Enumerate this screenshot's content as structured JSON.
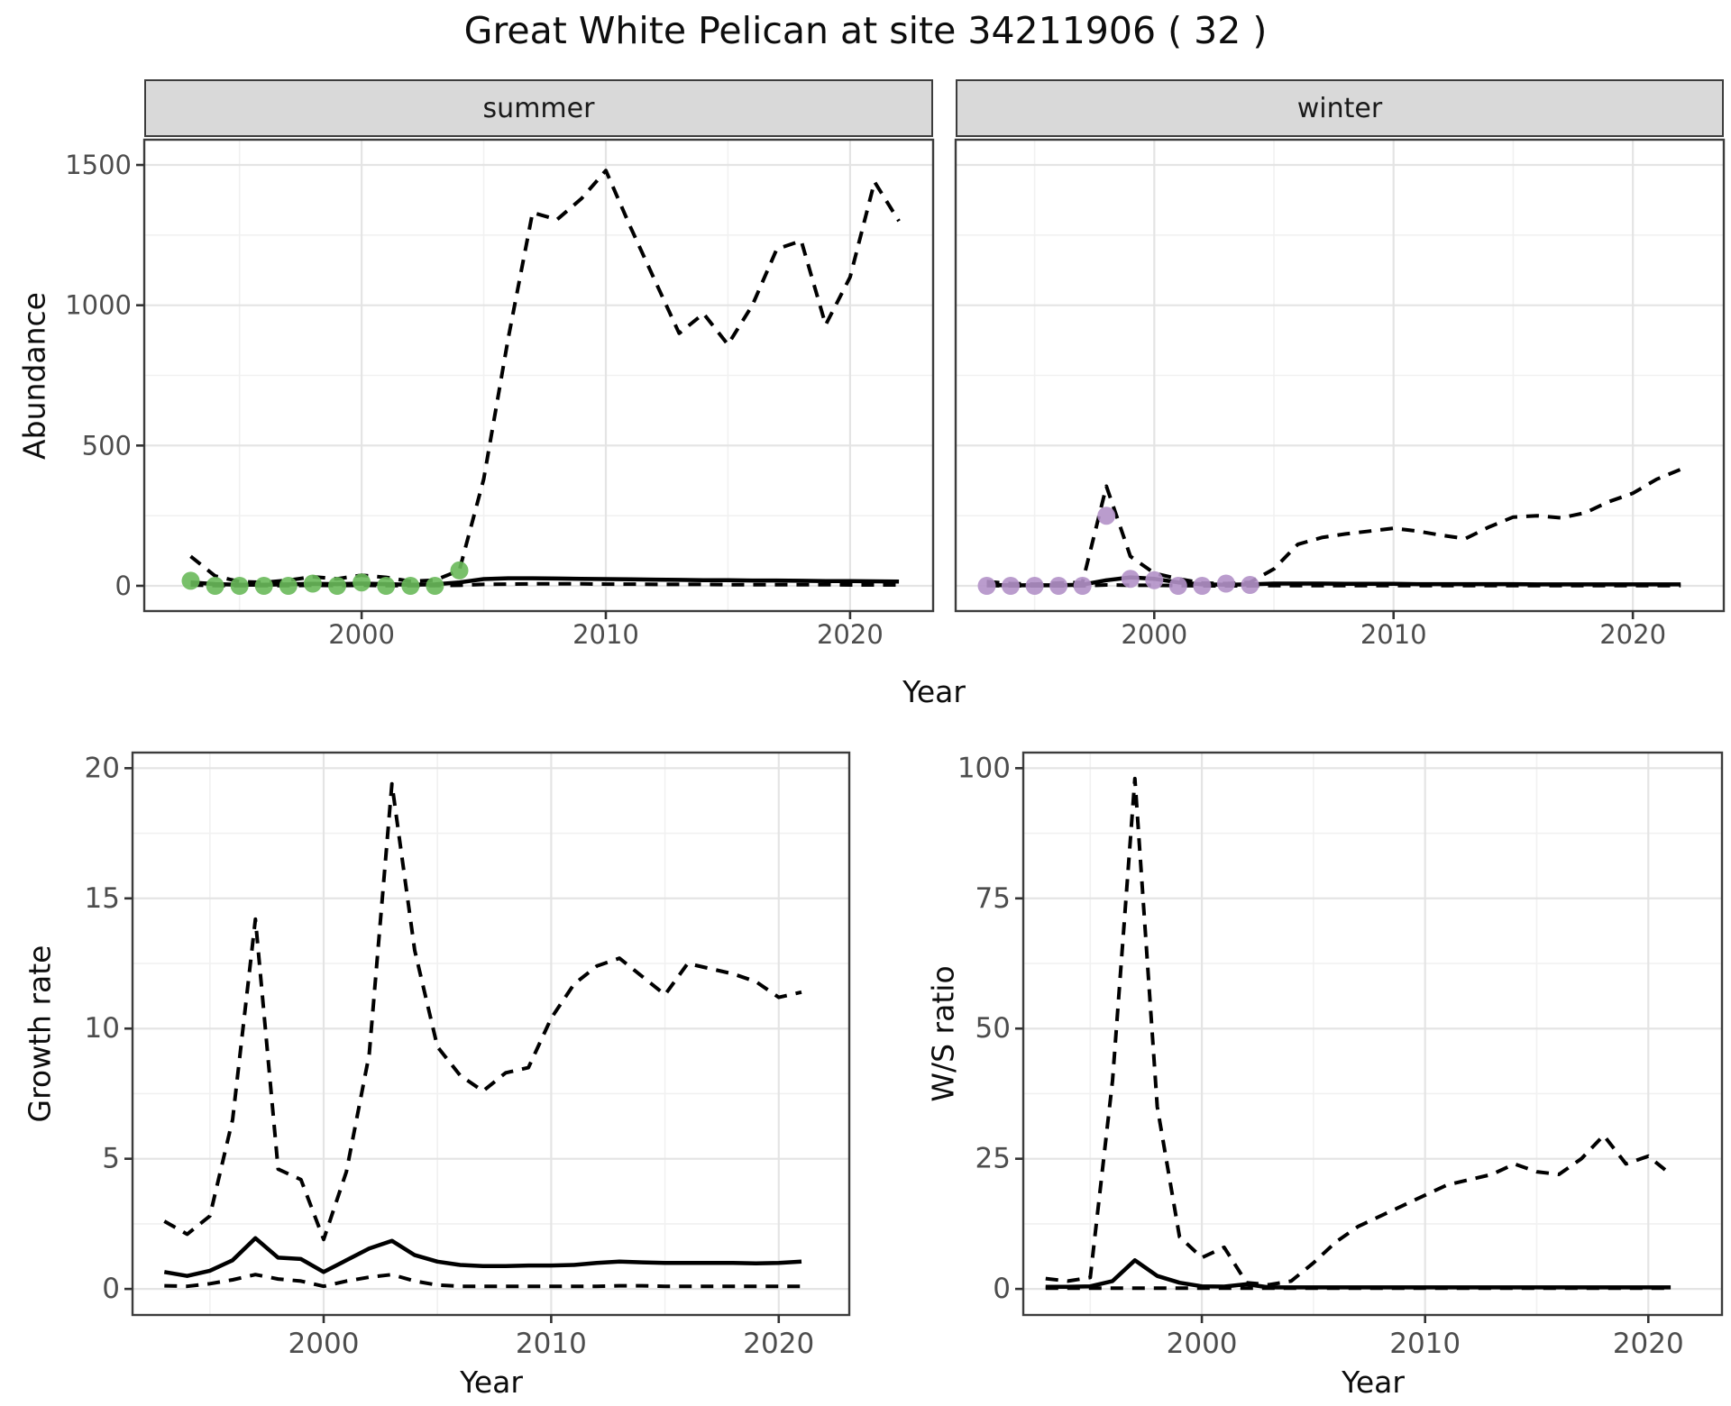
{
  "title": "Great White Pelican at site 34211906 ( 32 )",
  "colors": {
    "points_summer": "#69b95a",
    "points_winter": "#b291c8",
    "line": "#000000",
    "strip_background": "#d9d9d9",
    "panel_border": "#3c3c3c",
    "grid_major": "#e4e4e4",
    "grid_minor": "#f1f1f1",
    "axis_text": "#4d4d4d"
  },
  "chart_data": [
    {
      "id": "abundance-summer",
      "type": "line",
      "facet_label": "summer",
      "xlabel": "Year",
      "ylabel": "Abundance",
      "xlim": [
        1991.1,
        2023.4
      ],
      "ylim": [
        -90,
        1590
      ],
      "xticks": [
        2000,
        2010,
        2020
      ],
      "yticks": [
        0,
        500,
        1000,
        1500
      ],
      "xminor": [
        1995,
        2005,
        2015
      ],
      "yminor": [
        250,
        750,
        1250
      ],
      "years": [
        1993,
        1994,
        1995,
        1996,
        1997,
        1998,
        1999,
        2000,
        2001,
        2002,
        2003,
        2004,
        2005,
        2006,
        2007,
        2008,
        2009,
        2010,
        2011,
        2012,
        2013,
        2014,
        2015,
        2016,
        2017,
        2018,
        2019,
        2020,
        2021,
        2022
      ],
      "series": [
        {
          "name": "upper-ci-dashed",
          "style": "dashed",
          "values": [
            105,
            35,
            15,
            12,
            20,
            32,
            25,
            38,
            30,
            16,
            20,
            55,
            380,
            880,
            1330,
            1305,
            1380,
            1480,
            1280,
            1090,
            900,
            970,
            860,
            1000,
            1200,
            1230,
            930,
            1100,
            1440,
            1300
          ]
        },
        {
          "name": "median-solid",
          "style": "solid",
          "values": [
            12,
            6,
            4,
            4,
            5,
            7,
            6,
            8,
            6,
            4,
            5,
            12,
            24,
            27,
            27,
            26,
            25,
            24,
            23,
            22,
            21,
            20,
            20,
            19,
            19,
            18,
            17,
            17,
            16,
            15
          ]
        },
        {
          "name": "lower-ci-dashed",
          "style": "dashed",
          "values": [
            3,
            1,
            1,
            1,
            1,
            2,
            1,
            2,
            1,
            1,
            1,
            2,
            5,
            6,
            7,
            7,
            7,
            6,
            6,
            5,
            5,
            5,
            4,
            4,
            4,
            4,
            4,
            3,
            3,
            3
          ]
        }
      ],
      "points": {
        "name": "observed-counts-summer",
        "color_key": "points_summer",
        "years": [
          1993,
          1994,
          1995,
          1996,
          1997,
          1998,
          1999,
          2000,
          2001,
          2002,
          2003,
          2004
        ],
        "values": [
          18,
          0,
          0,
          0,
          0,
          8,
          0,
          12,
          0,
          0,
          0,
          55
        ]
      }
    },
    {
      "id": "abundance-winter",
      "type": "line",
      "facet_label": "winter",
      "xlabel": "Year",
      "ylabel": "Abundance",
      "xlim": [
        1991.7,
        2023.8
      ],
      "ylim": [
        -90,
        1590
      ],
      "xticks": [
        2000,
        2010,
        2020
      ],
      "yticks": [
        0,
        500,
        1000,
        1500
      ],
      "xminor": [
        1995,
        2005,
        2015
      ],
      "yminor": [
        250,
        750,
        1250
      ],
      "years": [
        1993,
        1994,
        1995,
        1996,
        1997,
        1998,
        1999,
        2000,
        2001,
        2002,
        2003,
        2004,
        2005,
        2006,
        2007,
        2008,
        2009,
        2010,
        2011,
        2012,
        2013,
        2014,
        2015,
        2016,
        2017,
        2018,
        2019,
        2020,
        2021,
        2022
      ],
      "series": [
        {
          "name": "upper-ci-dashed",
          "style": "dashed",
          "values": [
            15,
            8,
            6,
            10,
            12,
            355,
            105,
            45,
            25,
            10,
            8,
            12,
            60,
            148,
            172,
            185,
            195,
            205,
            195,
            180,
            168,
            210,
            245,
            250,
            242,
            260,
            300,
            330,
            380,
            415
          ]
        },
        {
          "name": "median-solid",
          "style": "solid",
          "values": [
            3,
            2,
            2,
            2,
            4,
            20,
            30,
            25,
            12,
            5,
            4,
            5,
            8,
            8,
            8,
            7,
            7,
            7,
            6,
            6,
            6,
            6,
            6,
            5,
            5,
            5,
            5,
            5,
            5,
            5
          ]
        },
        {
          "name": "lower-ci-dashed",
          "style": "dashed",
          "values": [
            1,
            0,
            0,
            0,
            0,
            3,
            2,
            2,
            1,
            0,
            0,
            0,
            1,
            1,
            1,
            1,
            1,
            1,
            1,
            1,
            1,
            1,
            1,
            1,
            1,
            1,
            1,
            1,
            1,
            1
          ]
        }
      ],
      "points": {
        "name": "observed-counts-winter",
        "color_key": "points_winter",
        "years": [
          1993,
          1994,
          1995,
          1996,
          1997,
          1998,
          1999,
          2000,
          2001,
          2002,
          2003,
          2004
        ],
        "values": [
          0,
          0,
          0,
          0,
          0,
          250,
          25,
          20,
          0,
          0,
          8,
          3
        ]
      }
    },
    {
      "id": "growth-rate",
      "type": "line",
      "facet_label": "",
      "xlabel": "Year",
      "ylabel": "Growth rate",
      "xlim": [
        1991.6,
        2023.1
      ],
      "ylim": [
        -1.0,
        20.6
      ],
      "xticks": [
        2000,
        2010,
        2020
      ],
      "yticks": [
        0,
        5,
        10,
        15,
        20
      ],
      "xminor": [
        1995,
        2005,
        2015
      ],
      "yminor": [
        2.5,
        7.5,
        12.5,
        17.5
      ],
      "years": [
        1993,
        1994,
        1995,
        1996,
        1997,
        1998,
        1999,
        2000,
        2001,
        2002,
        2003,
        2004,
        2005,
        2006,
        2007,
        2008,
        2009,
        2010,
        2011,
        2012,
        2013,
        2014,
        2015,
        2016,
        2017,
        2018,
        2019,
        2020,
        2021
      ],
      "series": [
        {
          "name": "upper-ci-dashed",
          "style": "dashed",
          "values": [
            2.6,
            2.1,
            2.8,
            6.5,
            14.2,
            4.6,
            4.2,
            1.9,
            4.5,
            9.0,
            19.4,
            13.0,
            9.3,
            8.2,
            7.6,
            8.3,
            8.5,
            10.4,
            11.7,
            12.4,
            12.7,
            12.0,
            11.3,
            12.5,
            12.3,
            12.1,
            11.8,
            11.2,
            11.4
          ]
        },
        {
          "name": "median-solid",
          "style": "solid",
          "values": [
            0.65,
            0.5,
            0.7,
            1.1,
            1.95,
            1.2,
            1.15,
            0.65,
            1.1,
            1.55,
            1.85,
            1.3,
            1.05,
            0.92,
            0.88,
            0.88,
            0.9,
            0.9,
            0.92,
            1.0,
            1.05,
            1.02,
            1.0,
            1.0,
            1.0,
            1.0,
            0.98,
            1.0,
            1.05
          ]
        },
        {
          "name": "lower-ci-dashed",
          "style": "dashed",
          "values": [
            0.12,
            0.1,
            0.2,
            0.35,
            0.55,
            0.38,
            0.3,
            0.1,
            0.3,
            0.45,
            0.55,
            0.3,
            0.15,
            0.1,
            0.1,
            0.1,
            0.1,
            0.1,
            0.1,
            0.1,
            0.12,
            0.12,
            0.1,
            0.1,
            0.1,
            0.1,
            0.1,
            0.1,
            0.1
          ]
        }
      ]
    },
    {
      "id": "ws-ratio",
      "type": "line",
      "facet_label": "",
      "xlabel": "Year",
      "ylabel": "W/S ratio",
      "xlim": [
        1992.0,
        2023.3
      ],
      "ylim": [
        -5,
        103
      ],
      "xticks": [
        2000,
        2010,
        2020
      ],
      "yticks": [
        0,
        25,
        50,
        75,
        100
      ],
      "xminor": [
        1995,
        2005,
        2015
      ],
      "yminor": [
        12.5,
        37.5,
        62.5,
        87.5
      ],
      "years": [
        1993,
        1994,
        1995,
        1996,
        1997,
        1998,
        1999,
        2000,
        2001,
        2002,
        2003,
        2004,
        2005,
        2006,
        2007,
        2008,
        2009,
        2010,
        2011,
        2012,
        2013,
        2014,
        2015,
        2016,
        2017,
        2018,
        2019,
        2020,
        2021
      ],
      "series": [
        {
          "name": "upper-ci-dashed",
          "style": "dashed",
          "values": [
            2,
            1.5,
            2.2,
            40,
            98,
            35,
            10,
            6,
            8,
            1.2,
            0.8,
            1.5,
            5,
            9,
            12,
            14,
            16,
            18,
            20,
            21,
            22,
            24,
            22.5,
            22,
            25,
            29.5,
            24,
            25.5,
            22
          ]
        },
        {
          "name": "median-solid",
          "style": "solid",
          "values": [
            0.4,
            0.4,
            0.5,
            1.5,
            5.5,
            2.5,
            1.2,
            0.5,
            0.45,
            0.9,
            0.3,
            0.3,
            0.3,
            0.3,
            0.3,
            0.3,
            0.3,
            0.3,
            0.3,
            0.3,
            0.3,
            0.3,
            0.3,
            0.3,
            0.3,
            0.3,
            0.3,
            0.3,
            0.3
          ]
        },
        {
          "name": "lower-ci-dashed",
          "style": "dashed",
          "values": [
            0.15,
            0.15,
            0.15,
            0.15,
            0.15,
            0.15,
            0.15,
            0.15,
            0.15,
            0.15,
            0.15,
            0.15,
            0.15,
            0.15,
            0.15,
            0.15,
            0.15,
            0.15,
            0.15,
            0.15,
            0.15,
            0.15,
            0.15,
            0.15,
            0.15,
            0.15,
            0.15,
            0.15,
            0.15
          ]
        }
      ]
    }
  ]
}
